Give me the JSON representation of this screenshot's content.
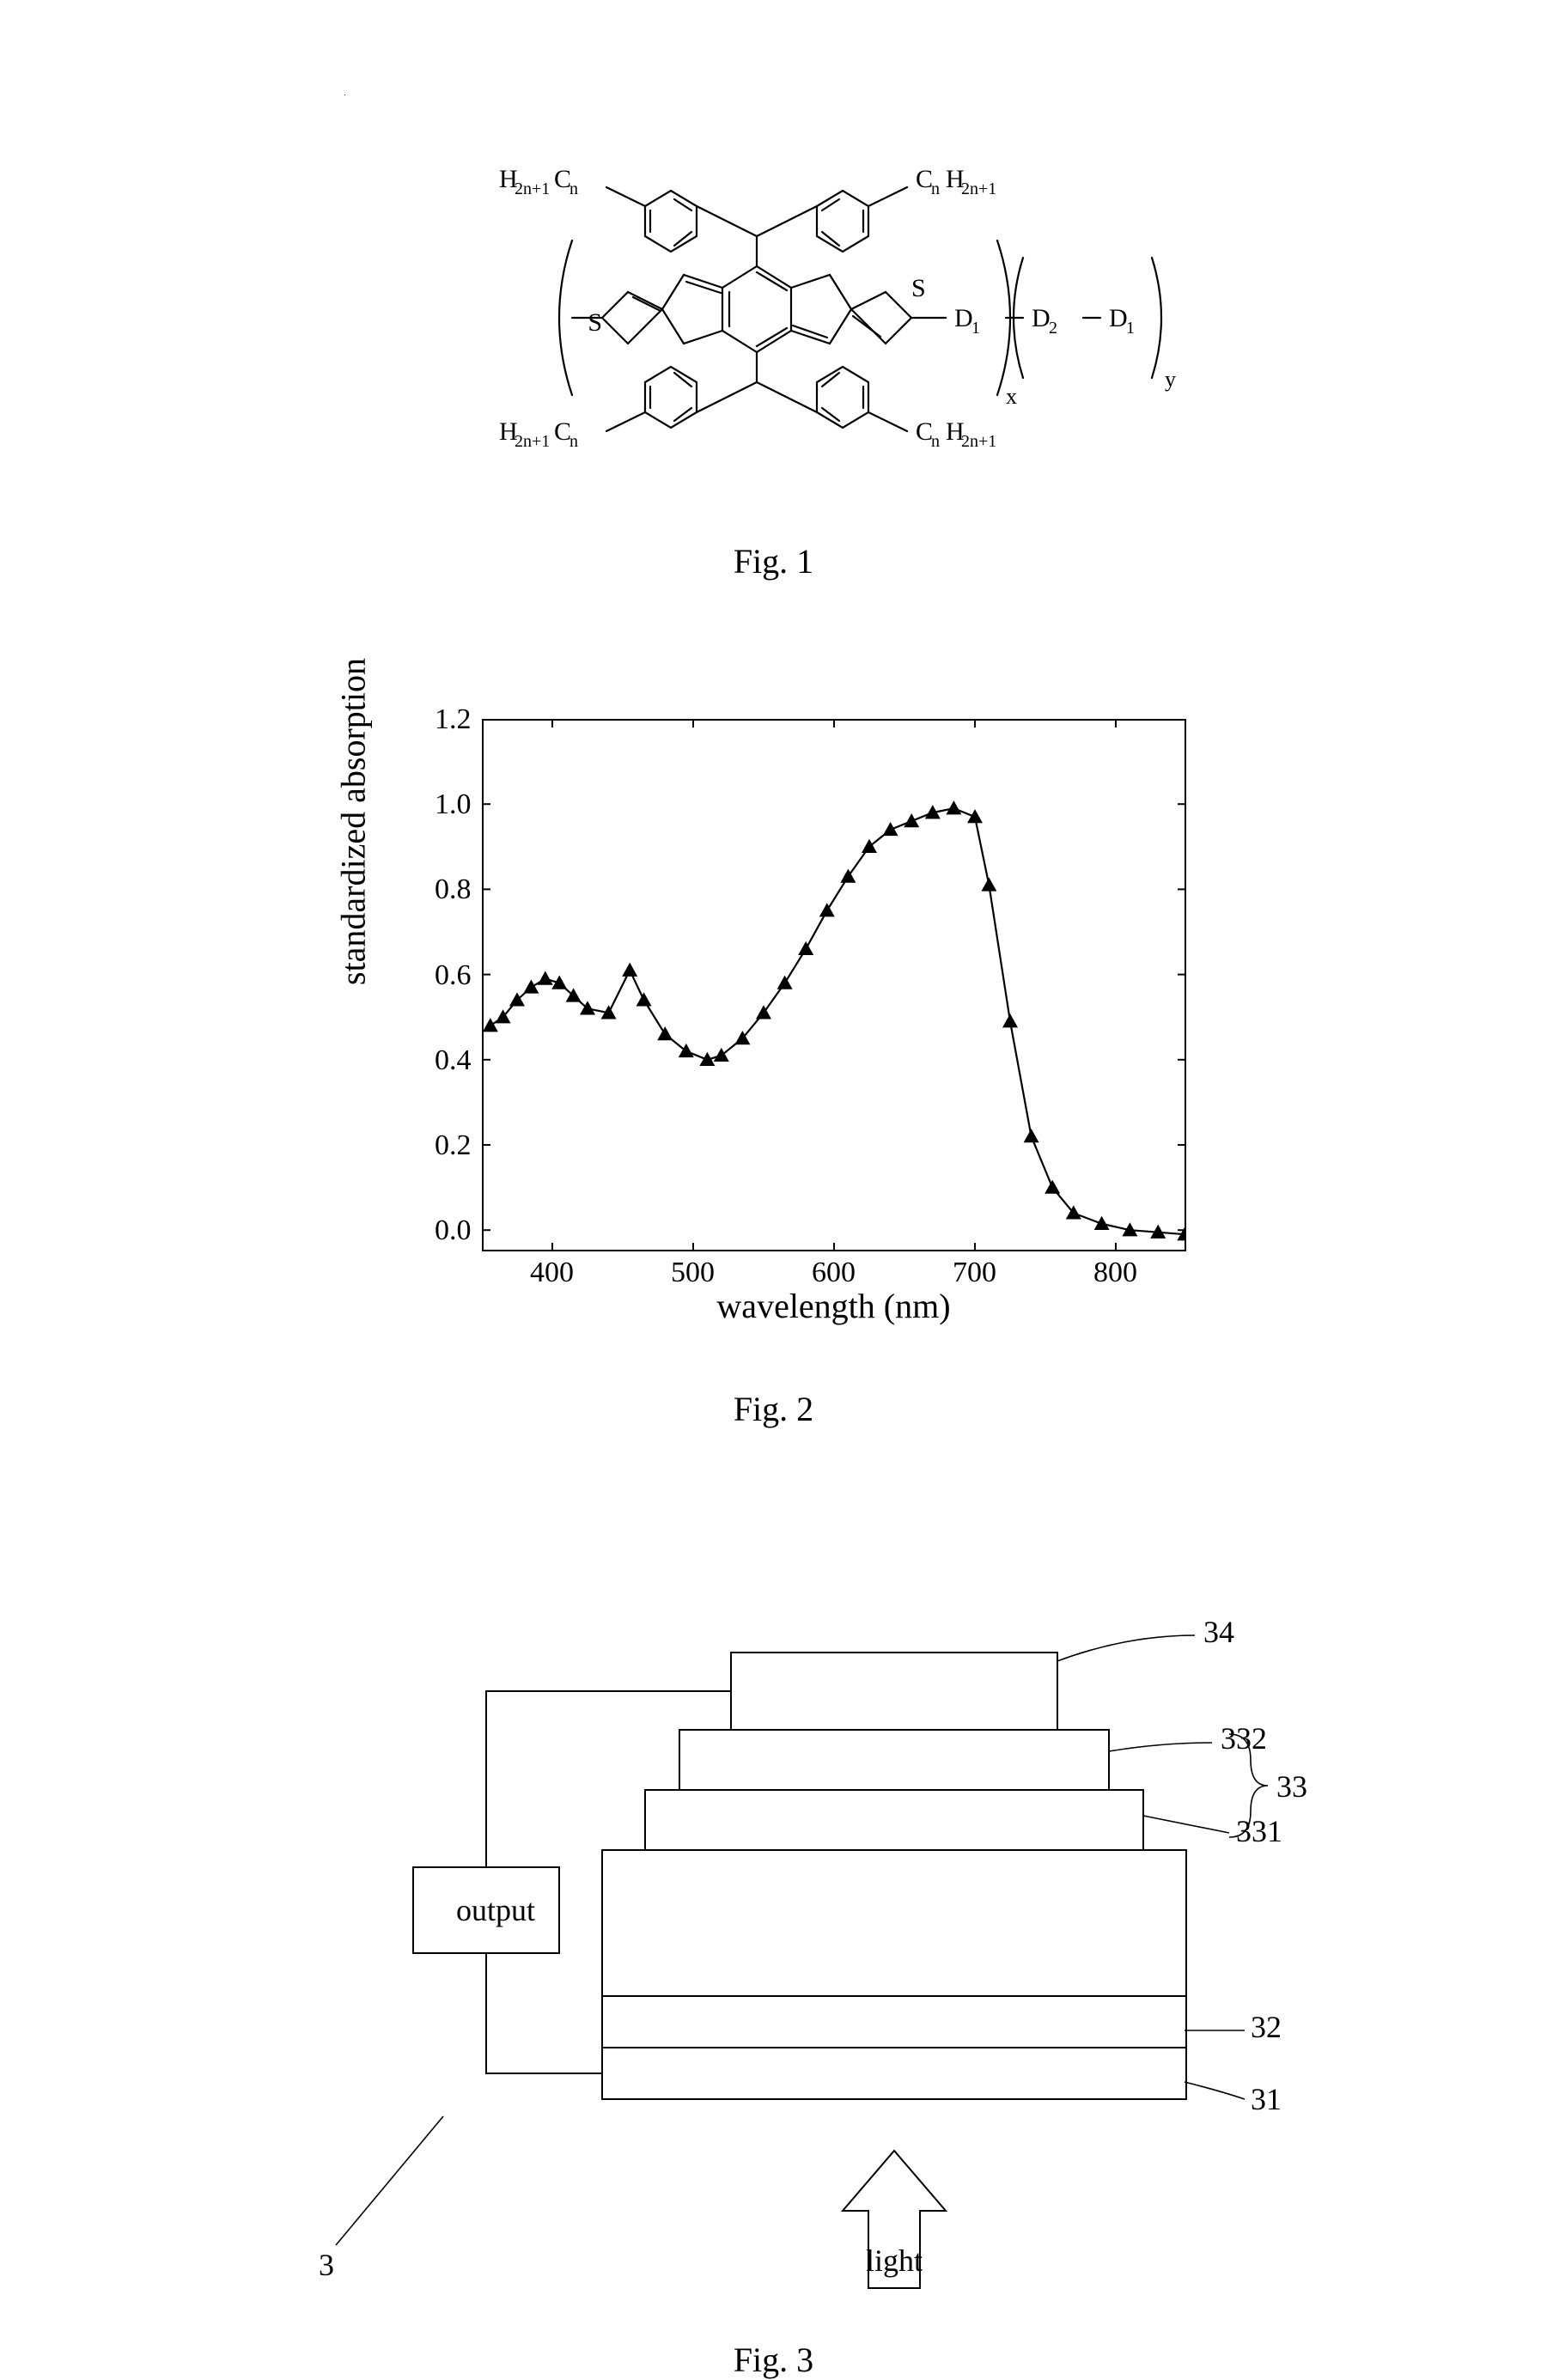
{
  "fig1": {
    "caption": "Fig. 1",
    "labels": {
      "top_left": "H₂ₙ₊₁Cₙ",
      "top_right": "CₙH₂ₙ₊₁",
      "bottom_left": "H₂ₙ₊₁Cₙ",
      "bottom_right": "CₙH₂ₙ₊₁",
      "S1": "S",
      "S2": "S",
      "D1a": "D₁",
      "D2": "D₂",
      "D1b": "D₁",
      "x": "x",
      "y": "y"
    }
  },
  "fig2": {
    "caption": "Fig. 2",
    "type": "line",
    "xlabel": "wavelength  (nm)",
    "ylabel": "standardized absorption",
    "xlim": [
      350,
      850
    ],
    "ylim": [
      -0.05,
      1.2
    ],
    "x_ticks": [
      400,
      500,
      600,
      700,
      800
    ],
    "y_ticks": [
      0.0,
      0.2,
      0.4,
      0.6,
      0.8,
      1.0,
      1.2
    ],
    "y_tick_labels": [
      "0.0",
      "0.2",
      "0.4",
      "0.6",
      "0.8",
      "1.0",
      "1.2"
    ],
    "tick_length": 10,
    "line_color": "#000000",
    "marker_color": "#000000",
    "line_width": 2.2,
    "marker_size": 9,
    "marker": "triangle",
    "background_color": "#ffffff",
    "label_fontsize": 40,
    "tick_fontsize": 34,
    "points": [
      [
        356,
        0.48
      ],
      [
        365,
        0.5
      ],
      [
        375,
        0.54
      ],
      [
        385,
        0.57
      ],
      [
        395,
        0.59
      ],
      [
        405,
        0.58
      ],
      [
        415,
        0.55
      ],
      [
        425,
        0.52
      ],
      [
        440,
        0.51
      ],
      [
        455,
        0.61
      ],
      [
        465,
        0.54
      ],
      [
        480,
        0.46
      ],
      [
        495,
        0.42
      ],
      [
        510,
        0.4
      ],
      [
        520,
        0.41
      ],
      [
        535,
        0.45
      ],
      [
        550,
        0.51
      ],
      [
        565,
        0.58
      ],
      [
        580,
        0.66
      ],
      [
        595,
        0.75
      ],
      [
        610,
        0.83
      ],
      [
        625,
        0.9
      ],
      [
        640,
        0.94
      ],
      [
        655,
        0.96
      ],
      [
        670,
        0.98
      ],
      [
        685,
        0.99
      ],
      [
        700,
        0.97
      ],
      [
        710,
        0.81
      ],
      [
        725,
        0.49
      ],
      [
        740,
        0.22
      ],
      [
        755,
        0.1
      ],
      [
        770,
        0.04
      ],
      [
        790,
        0.015
      ],
      [
        810,
        0.0
      ],
      [
        830,
        -0.005
      ],
      [
        849,
        -0.01
      ]
    ]
  },
  "fig3": {
    "caption": "Fig. 3",
    "output_label": "output",
    "light_label": "light",
    "annotations": {
      "n3": "3",
      "n31": "31",
      "n32": "32",
      "n33": "33",
      "n331": "331",
      "n332": "332",
      "n34": "34"
    },
    "colors": {
      "stroke": "#000000",
      "fill": "#ffffff"
    },
    "stroke_width": 2
  }
}
